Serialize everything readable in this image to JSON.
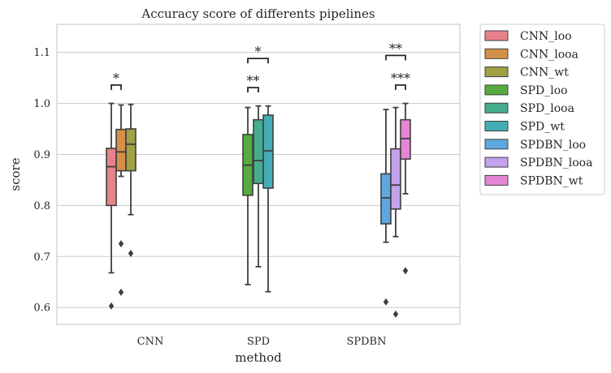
{
  "chart_data": {
    "type": "box",
    "title": "Accuracy score of differents pipelines",
    "xlabel": "method",
    "ylabel": "score",
    "ylim": [
      0.567,
      1.155
    ],
    "yticks": [
      "0.6",
      "0.7",
      "0.8",
      "0.9",
      "1.0",
      "1.1"
    ],
    "categories": [
      "CNN",
      "SPD",
      "SPDBN"
    ],
    "grid": "horizontal",
    "legend_position": "outside-right",
    "series": [
      {
        "name": "CNN_loo",
        "color": "#e8818b",
        "category": "CNN",
        "slot": 0,
        "q1": 0.8,
        "median": 0.876,
        "q3": 0.912,
        "whisker_low": 0.668,
        "whisker_high": 1.0,
        "outliers": [
          0.603
        ]
      },
      {
        "name": "CNN_looa",
        "color": "#d39046",
        "category": "CNN",
        "slot": 1,
        "q1": 0.868,
        "median": 0.905,
        "q3": 0.949,
        "whisker_low": 0.857,
        "whisker_high": 0.997,
        "outliers": [
          0.725,
          0.63
        ]
      },
      {
        "name": "CNN_wt",
        "color": "#a1a045",
        "category": "CNN",
        "slot": 2,
        "q1": 0.868,
        "median": 0.92,
        "q3": 0.95,
        "whisker_low": 0.782,
        "whisker_high": 0.998,
        "outliers": [
          0.706
        ]
      },
      {
        "name": "SPD_loo",
        "color": "#57aa3f",
        "category": "SPD",
        "slot": 3,
        "q1": 0.82,
        "median": 0.879,
        "q3": 0.939,
        "whisker_low": 0.645,
        "whisker_high": 0.992,
        "outliers": []
      },
      {
        "name": "SPD_looa",
        "color": "#43ae8d",
        "category": "SPD",
        "slot": 4,
        "q1": 0.843,
        "median": 0.888,
        "q3": 0.968,
        "whisker_low": 0.68,
        "whisker_high": 0.995,
        "outliers": []
      },
      {
        "name": "SPD_wt",
        "color": "#45adb5",
        "category": "SPD",
        "slot": 5,
        "q1": 0.834,
        "median": 0.907,
        "q3": 0.977,
        "whisker_low": 0.631,
        "whisker_high": 0.995,
        "outliers": []
      },
      {
        "name": "SPDBN_loo",
        "color": "#5ea8df",
        "category": "SPDBN",
        "slot": 6,
        "q1": 0.764,
        "median": 0.815,
        "q3": 0.862,
        "whisker_low": 0.728,
        "whisker_high": 0.988,
        "outliers": [
          0.611
        ]
      },
      {
        "name": "SPDBN_looa",
        "color": "#c3a2ec",
        "category": "SPDBN",
        "slot": 7,
        "q1": 0.793,
        "median": 0.84,
        "q3": 0.911,
        "whisker_low": 0.739,
        "whisker_high": 0.992,
        "outliers": [
          0.587
        ]
      },
      {
        "name": "SPDBN_wt",
        "color": "#e586d3",
        "category": "SPDBN",
        "slot": 8,
        "q1": 0.891,
        "median": 0.931,
        "q3": 0.968,
        "whisker_low": 0.823,
        "whisker_high": 1.0,
        "outliers": [
          0.672
        ]
      }
    ],
    "annotations": [
      {
        "text": "*",
        "from_slot": 0,
        "to_slot": 1,
        "y": 1.036
      },
      {
        "text": "**",
        "from_slot": 3,
        "to_slot": 4,
        "y": 1.031
      },
      {
        "text": "*",
        "from_slot": 3,
        "to_slot": 5,
        "y": 1.088
      },
      {
        "text": "**",
        "from_slot": 6,
        "to_slot": 8,
        "y": 1.094
      },
      {
        "text": "***",
        "from_slot": 7,
        "to_slot": 8,
        "y": 1.036
      }
    ]
  }
}
